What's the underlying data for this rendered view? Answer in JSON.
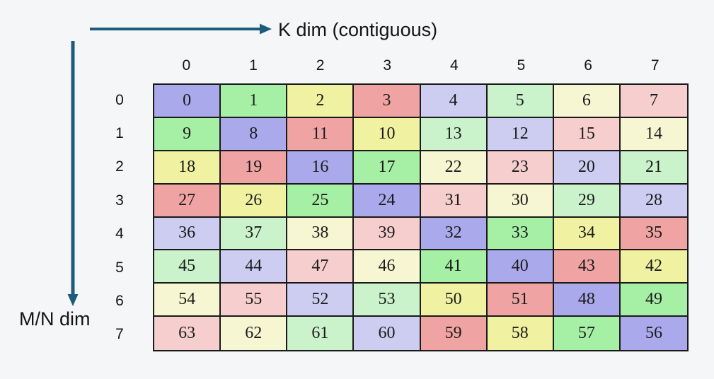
{
  "labels": {
    "k_dim": "K dim (contiguous)",
    "mn_dim": "M/N dim"
  },
  "colors": {
    "background": "#f5f6f7",
    "arrow": "#1e5c7d",
    "text": "#141414",
    "cell_border": "#1a1a1a",
    "palette": {
      "purple": "#a9a9ec",
      "green": "#a6f0a6",
      "yellow": "#f0f2a2",
      "red": "#efa3a3",
      "purple_light": "#cdcdf2",
      "green_light": "#cbf3cb",
      "yellow_light": "#f6f6d2",
      "red_light": "#f6cece"
    }
  },
  "grid": {
    "column_headers": [
      "0",
      "1",
      "2",
      "3",
      "4",
      "5",
      "6",
      "7"
    ],
    "row_headers": [
      "0",
      "1",
      "2",
      "3",
      "4",
      "5",
      "6",
      "7"
    ],
    "cells": [
      [
        {
          "v": "0",
          "c": "purple"
        },
        {
          "v": "1",
          "c": "green"
        },
        {
          "v": "2",
          "c": "yellow"
        },
        {
          "v": "3",
          "c": "red"
        },
        {
          "v": "4",
          "c": "purple_light"
        },
        {
          "v": "5",
          "c": "green_light"
        },
        {
          "v": "6",
          "c": "yellow_light"
        },
        {
          "v": "7",
          "c": "red_light"
        }
      ],
      [
        {
          "v": "9",
          "c": "green"
        },
        {
          "v": "8",
          "c": "purple"
        },
        {
          "v": "11",
          "c": "red"
        },
        {
          "v": "10",
          "c": "yellow"
        },
        {
          "v": "13",
          "c": "green_light"
        },
        {
          "v": "12",
          "c": "purple_light"
        },
        {
          "v": "15",
          "c": "red_light"
        },
        {
          "v": "14",
          "c": "yellow_light"
        }
      ],
      [
        {
          "v": "18",
          "c": "yellow"
        },
        {
          "v": "19",
          "c": "red"
        },
        {
          "v": "16",
          "c": "purple"
        },
        {
          "v": "17",
          "c": "green"
        },
        {
          "v": "22",
          "c": "yellow_light"
        },
        {
          "v": "23",
          "c": "red_light"
        },
        {
          "v": "20",
          "c": "purple_light"
        },
        {
          "v": "21",
          "c": "green_light"
        }
      ],
      [
        {
          "v": "27",
          "c": "red"
        },
        {
          "v": "26",
          "c": "yellow"
        },
        {
          "v": "25",
          "c": "green"
        },
        {
          "v": "24",
          "c": "purple"
        },
        {
          "v": "31",
          "c": "red_light"
        },
        {
          "v": "30",
          "c": "yellow_light"
        },
        {
          "v": "29",
          "c": "green_light"
        },
        {
          "v": "28",
          "c": "purple_light"
        }
      ],
      [
        {
          "v": "36",
          "c": "purple_light"
        },
        {
          "v": "37",
          "c": "green_light"
        },
        {
          "v": "38",
          "c": "yellow_light"
        },
        {
          "v": "39",
          "c": "red_light"
        },
        {
          "v": "32",
          "c": "purple"
        },
        {
          "v": "33",
          "c": "green"
        },
        {
          "v": "34",
          "c": "yellow"
        },
        {
          "v": "35",
          "c": "red"
        }
      ],
      [
        {
          "v": "45",
          "c": "green_light"
        },
        {
          "v": "44",
          "c": "purple_light"
        },
        {
          "v": "47",
          "c": "red_light"
        },
        {
          "v": "46",
          "c": "yellow_light"
        },
        {
          "v": "41",
          "c": "green"
        },
        {
          "v": "40",
          "c": "purple"
        },
        {
          "v": "43",
          "c": "red"
        },
        {
          "v": "42",
          "c": "yellow"
        }
      ],
      [
        {
          "v": "54",
          "c": "yellow_light"
        },
        {
          "v": "55",
          "c": "red_light"
        },
        {
          "v": "52",
          "c": "purple_light"
        },
        {
          "v": "53",
          "c": "green_light"
        },
        {
          "v": "50",
          "c": "yellow"
        },
        {
          "v": "51",
          "c": "red"
        },
        {
          "v": "48",
          "c": "purple"
        },
        {
          "v": "49",
          "c": "green"
        }
      ],
      [
        {
          "v": "63",
          "c": "red_light"
        },
        {
          "v": "62",
          "c": "yellow_light"
        },
        {
          "v": "61",
          "c": "green_light"
        },
        {
          "v": "60",
          "c": "purple_light"
        },
        {
          "v": "59",
          "c": "red"
        },
        {
          "v": "58",
          "c": "yellow"
        },
        {
          "v": "57",
          "c": "green"
        },
        {
          "v": "56",
          "c": "purple"
        }
      ]
    ]
  }
}
